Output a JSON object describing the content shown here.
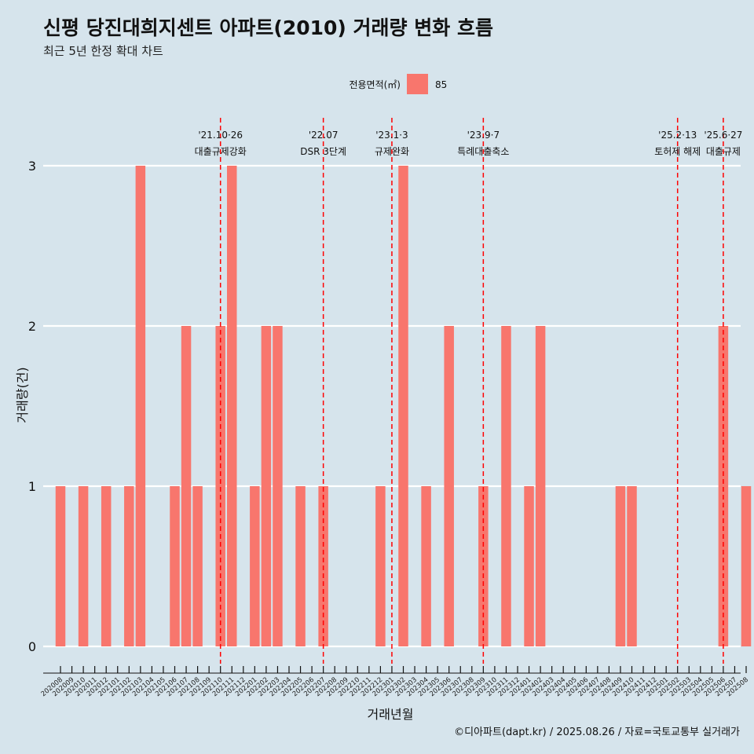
{
  "colors": {
    "background": "#d6e4ec",
    "bar": "#f8766d",
    "event_line": "#ff0000",
    "grid": "#ffffff",
    "text": "#111111"
  },
  "chart_data": {
    "type": "bar",
    "title": "신평 당진대희지센트 아파트(2010) 거래량 변화 흐름",
    "subtitle": "최근 5년 한정 확대 차트",
    "xlabel": "거래년월",
    "ylabel": "거래량(건)",
    "ylim": [
      0,
      3
    ],
    "yticks": [
      0,
      1,
      2,
      3
    ],
    "grid": true,
    "legend": {
      "title": "전용면적(㎡)",
      "placement": "top",
      "entries": [
        "85"
      ]
    },
    "categories": [
      "202008",
      "202009",
      "202010",
      "202011",
      "202012",
      "202101",
      "202102",
      "202103",
      "202104",
      "202105",
      "202106",
      "202107",
      "202108",
      "202109",
      "202110",
      "202111",
      "202112",
      "202201",
      "202202",
      "202203",
      "202204",
      "202205",
      "202206",
      "202207",
      "202208",
      "202209",
      "202210",
      "202211",
      "202212",
      "202301",
      "202302",
      "202303",
      "202304",
      "202305",
      "202306",
      "202307",
      "202308",
      "202309",
      "202310",
      "202311",
      "202312",
      "202401",
      "202402",
      "202403",
      "202404",
      "202405",
      "202406",
      "202407",
      "202408",
      "202409",
      "202410",
      "202411",
      "202412",
      "202501",
      "202502",
      "202503",
      "202504",
      "202505",
      "202506",
      "202507",
      "202508"
    ],
    "series": [
      {
        "name": "85",
        "values": [
          1,
          0,
          1,
          0,
          1,
          0,
          1,
          3,
          0,
          0,
          1,
          2,
          1,
          0,
          2,
          3,
          0,
          1,
          2,
          2,
          0,
          1,
          0,
          1,
          0,
          0,
          0,
          0,
          1,
          0,
          3,
          0,
          1,
          0,
          2,
          0,
          0,
          1,
          0,
          2,
          0,
          1,
          2,
          0,
          0,
          0,
          0,
          0,
          0,
          1,
          1,
          0,
          0,
          0,
          0,
          0,
          0,
          0,
          2,
          0,
          1
        ]
      }
    ],
    "events": [
      {
        "date": "'21.10·26",
        "label": "대출규제강화",
        "month": "202110"
      },
      {
        "date": "'22.07",
        "label": "DSR 3단계",
        "month": "202207"
      },
      {
        "date": "'23.1·3",
        "label": "규제완화",
        "month": "202301"
      },
      {
        "date": "'23.9·7",
        "label": "특례대출축소",
        "month": "202309"
      },
      {
        "date": "'25.2·13",
        "label": "토허제 해제",
        "month": "202502"
      },
      {
        "date": "'25.6·27",
        "label": "대출규제",
        "month": "202506"
      }
    ],
    "caption": "©디아파트(dapt.kr) / 2025.08.26 / 자료=국토교통부 실거래가"
  }
}
